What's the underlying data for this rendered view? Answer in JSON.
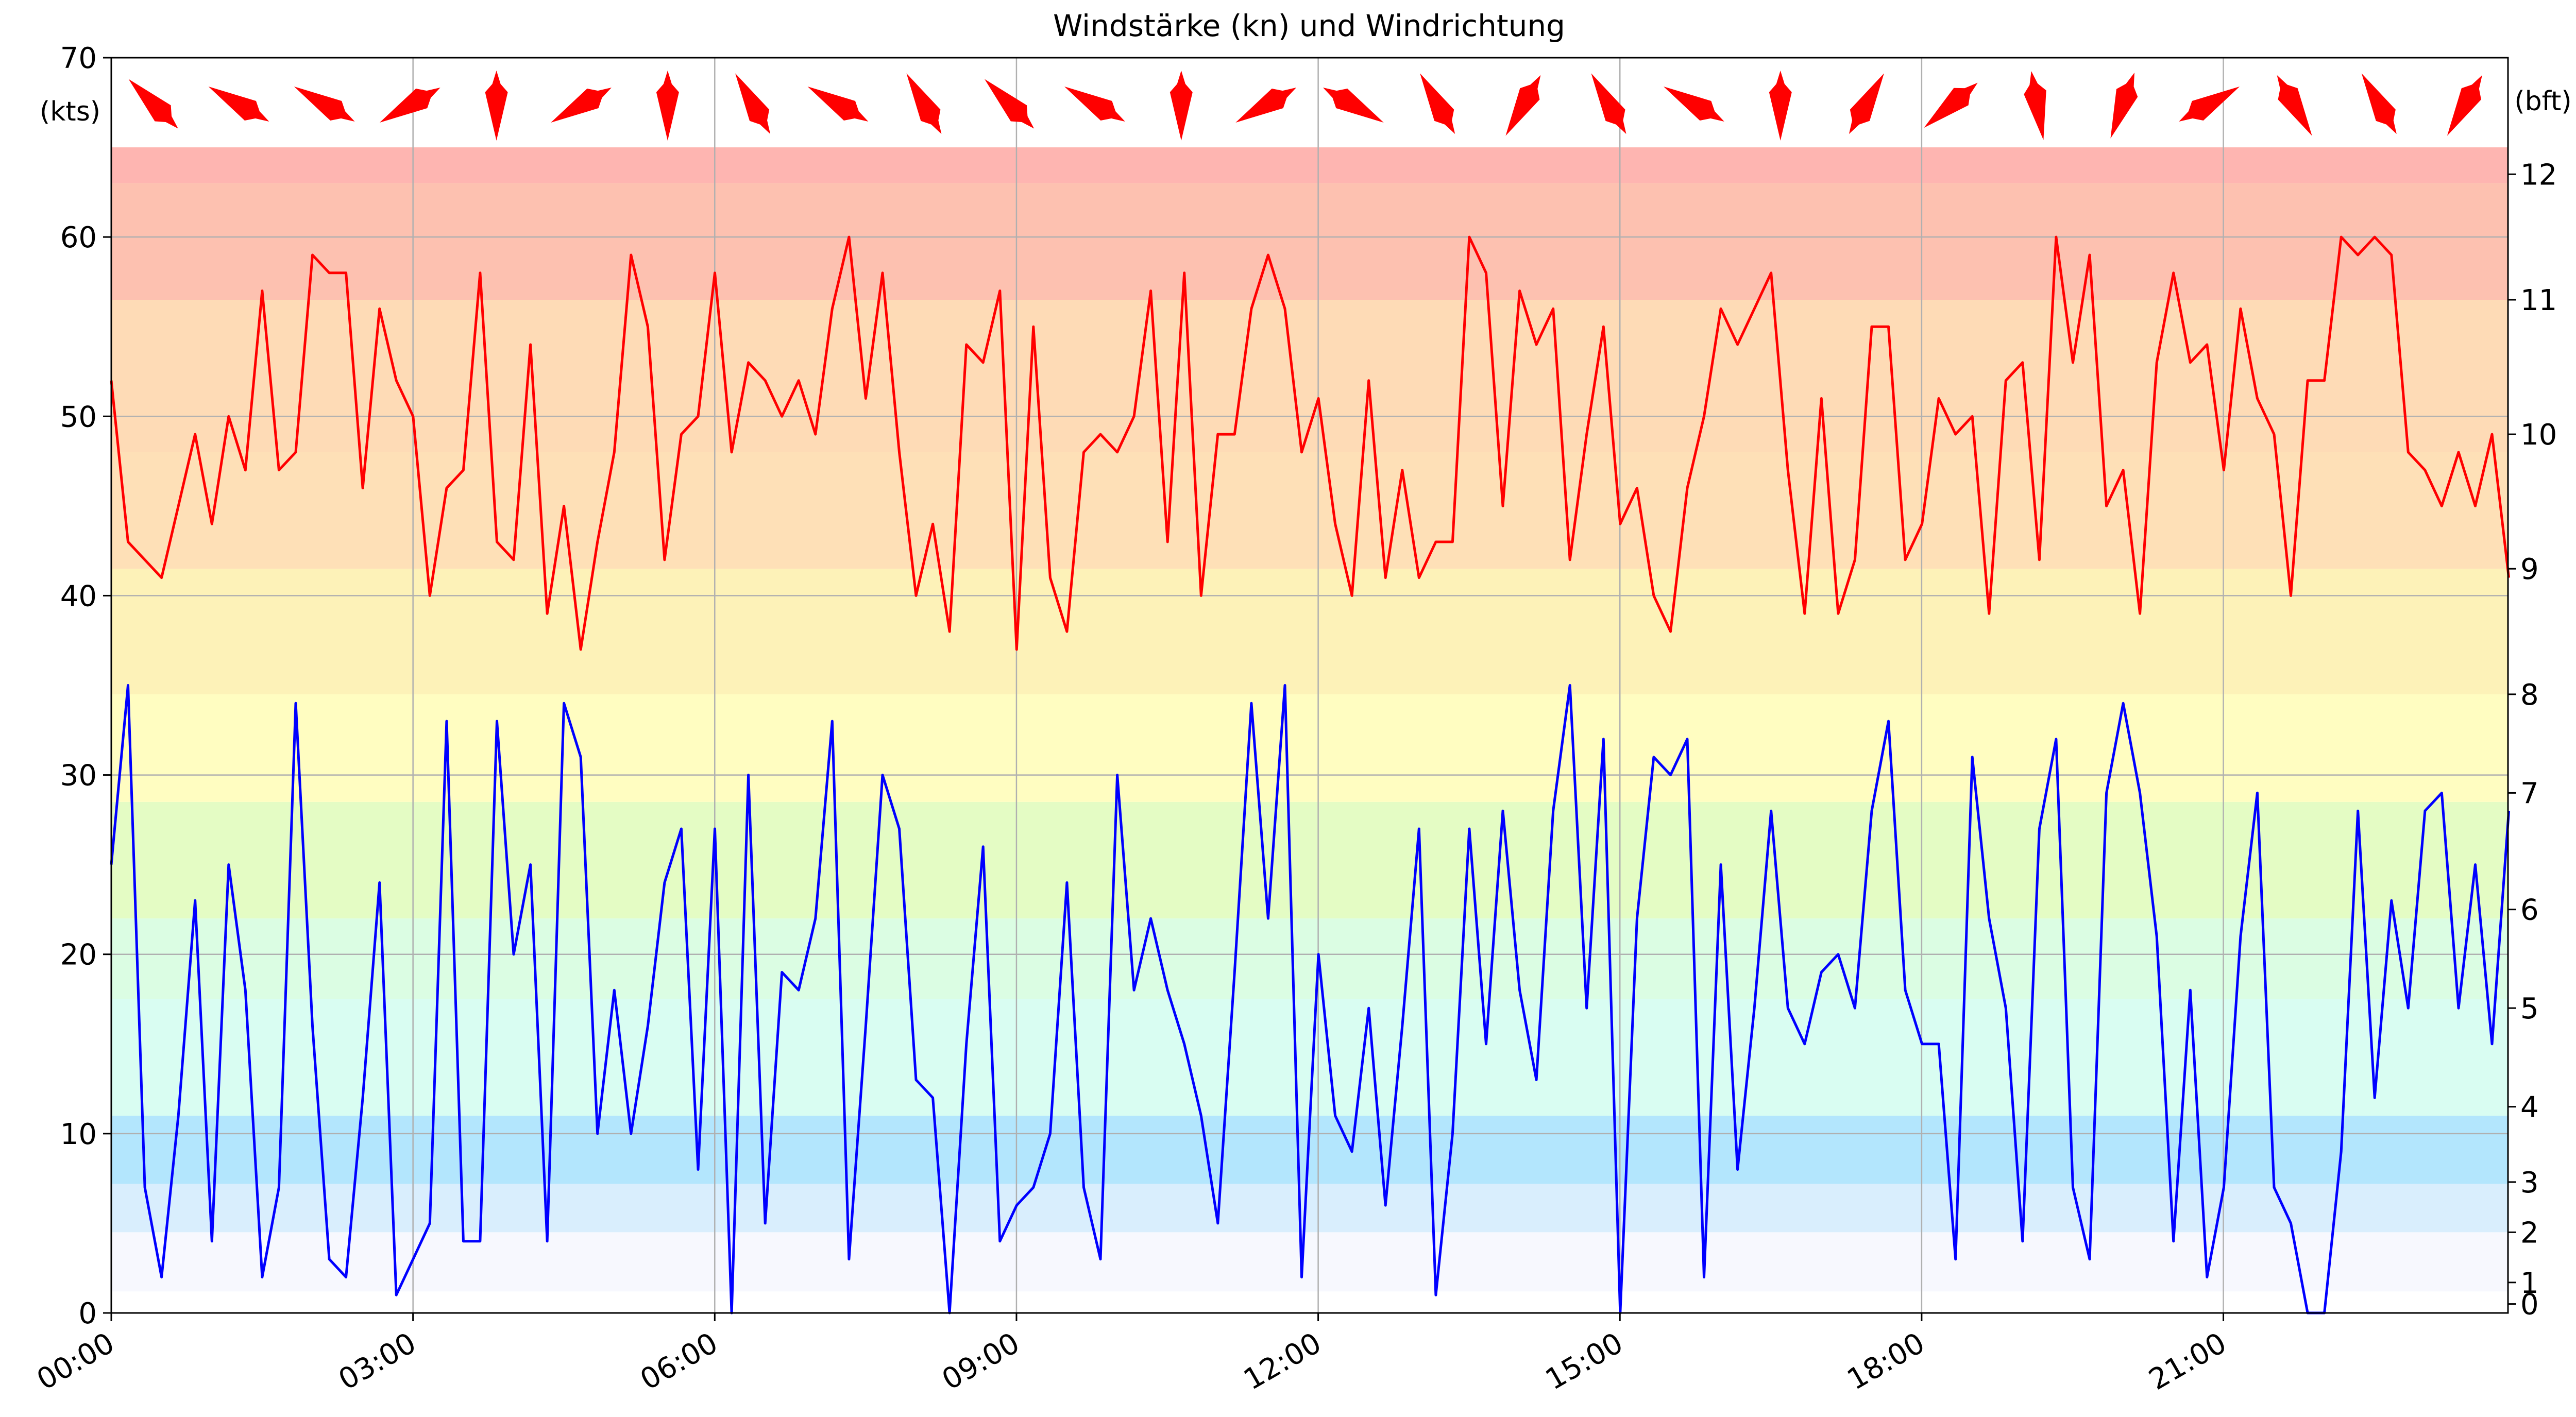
{
  "chart_data": {
    "type": "line",
    "title": "Windstärke (kn) und Windrichtung",
    "left_axis_label": "(kts)",
    "right_axis_label": "(bft)",
    "ylim": [
      0,
      70
    ],
    "left_ticks": [
      "0",
      "10",
      "20",
      "30",
      "40",
      "50",
      "60",
      "70"
    ],
    "left_tick_values": [
      0,
      10,
      20,
      30,
      40,
      50,
      60,
      70
    ],
    "x_ticks": [
      "00:00",
      "03:00",
      "06:00",
      "09:00",
      "12:00",
      "15:00",
      "18:00",
      "21:00"
    ],
    "x_tick_hours": [
      0,
      3,
      6,
      9,
      12,
      15,
      18,
      21
    ],
    "x_range_hours": [
      0,
      23.83
    ],
    "beaufort_ticks": [
      {
        "label": "0",
        "kts": 0.5
      },
      {
        "label": "1",
        "kts": 1.7
      },
      {
        "label": "2",
        "kts": 4.5
      },
      {
        "label": "3",
        "kts": 7.3
      },
      {
        "label": "4",
        "kts": 11.5
      },
      {
        "label": "5",
        "kts": 17.0
      },
      {
        "label": "6",
        "kts": 22.5
      },
      {
        "label": "7",
        "kts": 29.0
      },
      {
        "label": "8",
        "kts": 34.5
      },
      {
        "label": "9",
        "kts": 41.5
      },
      {
        "label": "10",
        "kts": 49.0
      },
      {
        "label": "11",
        "kts": 56.5
      },
      {
        "label": "12",
        "kts": 63.5
      }
    ],
    "bands": [
      {
        "from": 0,
        "to": 1.2,
        "color": "#ffffff"
      },
      {
        "from": 1.2,
        "to": 4.5,
        "color": "#f7f8fe"
      },
      {
        "from": 4.5,
        "to": 7.2,
        "color": "#d9eefd"
      },
      {
        "from": 7.2,
        "to": 11.0,
        "color": "#b3e6fd"
      },
      {
        "from": 11.0,
        "to": 17.5,
        "color": "#d9fdf2"
      },
      {
        "from": 17.5,
        "to": 22.0,
        "color": "#dbfde3"
      },
      {
        "from": 22.0,
        "to": 28.5,
        "color": "#e4fcc4"
      },
      {
        "from": 28.5,
        "to": 34.5,
        "color": "#fffdc1"
      },
      {
        "from": 34.5,
        "to": 41.5,
        "color": "#fdf2b8"
      },
      {
        "from": 41.5,
        "to": 48.0,
        "color": "#fee0b7"
      },
      {
        "from": 48.0,
        "to": 56.5,
        "color": "#fedbb6"
      },
      {
        "from": 56.5,
        "to": 63.0,
        "color": "#fdc1b0"
      },
      {
        "from": 63.0,
        "to": 65.0,
        "color": "#feb5b1"
      }
    ],
    "series": [
      {
        "color": "#ff0000",
        "x_step_hours": 0.1667,
        "values": [
          52,
          43,
          42,
          41,
          45,
          49,
          44,
          50,
          47,
          57,
          47,
          48,
          59,
          58,
          58,
          46,
          56,
          52,
          50,
          40,
          46,
          47,
          58,
          43,
          42,
          54,
          39,
          45,
          37,
          43,
          48,
          59,
          55,
          42,
          49,
          50,
          58,
          48,
          53,
          52,
          50,
          52,
          49,
          56,
          60,
          51,
          58,
          48,
          40,
          44,
          38,
          54,
          53,
          57,
          37,
          55,
          41,
          38,
          48,
          49,
          48,
          50,
          57,
          43,
          58,
          40,
          49,
          49,
          56,
          59,
          56,
          48,
          51,
          44,
          40,
          52,
          41,
          47,
          41,
          43,
          43,
          60,
          58,
          45,
          57,
          54,
          56,
          42,
          49,
          55,
          44,
          46,
          40,
          38,
          46,
          50,
          56,
          54,
          56,
          58,
          47,
          39,
          51,
          39,
          42,
          55,
          55,
          42,
          44,
          51,
          49,
          50,
          39,
          52,
          53,
          42,
          60,
          53,
          59,
          45,
          47,
          39,
          53,
          58,
          53,
          54,
          47,
          56,
          51,
          49,
          40,
          52,
          52,
          60,
          59,
          60,
          59,
          48,
          47,
          45,
          48,
          45,
          49,
          41
        ]
      },
      {
        "color": "#0000ff",
        "x_step_hours": 0.1667,
        "values": [
          25,
          35,
          7,
          2,
          11,
          23,
          4,
          25,
          18,
          2,
          7,
          34,
          16,
          3,
          2,
          12,
          24,
          1,
          3,
          5,
          33,
          4,
          4,
          33,
          20,
          25,
          4,
          34,
          31,
          10,
          18,
          10,
          16,
          24,
          27,
          8,
          27,
          0,
          30,
          5,
          19,
          18,
          22,
          33,
          3,
          16,
          30,
          27,
          13,
          12,
          0,
          15,
          26,
          4,
          6,
          7,
          10,
          24,
          7,
          3,
          30,
          18,
          22,
          18,
          15,
          11,
          5,
          19,
          34,
          22,
          35,
          2,
          20,
          11,
          9,
          17,
          6,
          16,
          27,
          1,
          10,
          27,
          15,
          28,
          18,
          13,
          28,
          35,
          17,
          32,
          0,
          22,
          31,
          30,
          32,
          2,
          25,
          8,
          17,
          28,
          17,
          15,
          19,
          20,
          17,
          28,
          33,
          18,
          15,
          15,
          3,
          31,
          22,
          17,
          4,
          27,
          32,
          7,
          3,
          29,
          34,
          29,
          21,
          4,
          18,
          2,
          7,
          21,
          29,
          7,
          5,
          0,
          0,
          9,
          28,
          12,
          23,
          17,
          28,
          29,
          17,
          25,
          15,
          28
        ]
      }
    ],
    "direction_arrows_deg": [
      315,
      300,
      300,
      240,
      180,
      240,
      180,
      330,
      300,
      330,
      315,
      300,
      180,
      240,
      120,
      330,
      210,
      330,
      300,
      180,
      30,
      230,
      170,
      200,
      60,
      150,
      330,
      210
    ],
    "arrow_color": "#ff0000"
  }
}
